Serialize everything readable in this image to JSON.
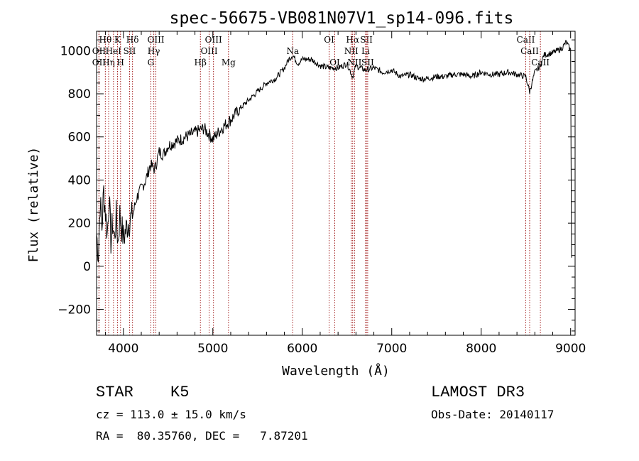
{
  "chart_data": {
    "type": "line",
    "title": "spec-56675-VB081N07V1_sp14-096.fits",
    "xlabel": "Wavelength (Å)",
    "ylabel": "Flux (relative)",
    "xlim": [
      3700,
      9050
    ],
    "ylim": [
      -320,
      1090
    ],
    "xticks": [
      4000,
      5000,
      6000,
      7000,
      8000,
      9000
    ],
    "yticks": [
      -200,
      0,
      200,
      400,
      600,
      800,
      1000
    ],
    "xtick_labels": [
      "4000",
      "5000",
      "6000",
      "7000",
      "8000",
      "9000"
    ],
    "ytick_labels": [
      "−200",
      "0",
      "200",
      "400",
      "600",
      "800",
      "1000"
    ],
    "series": [
      {
        "name": "flux",
        "color": "#000000",
        "x": [
          3700,
          3720,
          3740,
          3760,
          3780,
          3800,
          3820,
          3840,
          3860,
          3880,
          3900,
          3920,
          3940,
          3960,
          3980,
          4000,
          4050,
          4100,
          4150,
          4200,
          4250,
          4300,
          4350,
          4400,
          4450,
          4500,
          4600,
          4700,
          4800,
          4900,
          5000,
          5100,
          5200,
          5300,
          5400,
          5500,
          5600,
          5700,
          5800,
          5850,
          5893,
          5950,
          6000,
          6100,
          6200,
          6300,
          6400,
          6500,
          6563,
          6600,
          6700,
          6800,
          6900,
          7000,
          7100,
          7200,
          7300,
          7400,
          7500,
          7600,
          7700,
          7800,
          7900,
          8000,
          8100,
          8200,
          8300,
          8400,
          8498,
          8542,
          8600,
          8662,
          8700,
          8800,
          8900,
          8950,
          9000,
          9010
        ],
        "y": [
          150,
          60,
          300,
          180,
          350,
          250,
          150,
          320,
          120,
          200,
          130,
          230,
          110,
          240,
          180,
          130,
          200,
          230,
          320,
          360,
          400,
          470,
          450,
          530,
          520,
          560,
          580,
          600,
          620,
          640,
          590,
          640,
          680,
          730,
          770,
          810,
          850,
          870,
          920,
          960,
          980,
          940,
          960,
          960,
          930,
          920,
          920,
          940,
          880,
          930,
          910,
          920,
          900,
          910,
          880,
          890,
          870,
          870,
          880,
          880,
          890,
          890,
          880,
          900,
          890,
          890,
          900,
          890,
          880,
          810,
          900,
          930,
          980,
          990,
          1010,
          1040,
          1000,
          40
        ]
      }
    ],
    "lines": [
      {
        "name": "Hθ",
        "wavelength": 3798,
        "row": 1
      },
      {
        "name": "OII",
        "wavelength": 3727,
        "row": 2
      },
      {
        "name": "OII",
        "wavelength": 3727,
        "row": 3
      },
      {
        "name": "Hη",
        "wavelength": 3835,
        "row": 3
      },
      {
        "name": "HeI",
        "wavelength": 3889,
        "row": 2
      },
      {
        "name": "K",
        "wavelength": 3934,
        "row": 1
      },
      {
        "name": "H",
        "wavelength": 3968,
        "row": 3
      },
      {
        "name": "SII",
        "wavelength": 4069,
        "row": 2
      },
      {
        "name": "Hδ",
        "wavelength": 4102,
        "row": 1
      },
      {
        "name": "OIII",
        "wavelength": 4363,
        "row": 1
      },
      {
        "name": "Hγ",
        "wavelength": 4340,
        "row": 2
      },
      {
        "name": "G",
        "wavelength": 4307,
        "row": 3
      },
      {
        "name": "Hβ",
        "wavelength": 4861,
        "row": 3
      },
      {
        "name": "OIII",
        "wavelength": 4959,
        "row": 2
      },
      {
        "name": "OIII",
        "wavelength": 5007,
        "row": 1
      },
      {
        "name": "Mg",
        "wavelength": 5175,
        "row": 3
      },
      {
        "name": "Na",
        "wavelength": 5893,
        "row": 2
      },
      {
        "name": "OI",
        "wavelength": 6300,
        "row": 1
      },
      {
        "name": "OI",
        "wavelength": 6363,
        "row": 3
      },
      {
        "name": "Hα",
        "wavelength": 6563,
        "row": 1
      },
      {
        "name": "NII",
        "wavelength": 6548,
        "row": 2
      },
      {
        "name": "NII",
        "wavelength": 6584,
        "row": 3
      },
      {
        "name": "SII",
        "wavelength": 6717,
        "row": 1
      },
      {
        "name": "Li",
        "wavelength": 6708,
        "row": 2
      },
      {
        "name": "SII",
        "wavelength": 6731,
        "row": 3
      },
      {
        "name": "CaII",
        "wavelength": 8498,
        "row": 1
      },
      {
        "name": "CaII",
        "wavelength": 8542,
        "row": 2
      },
      {
        "name": "CaII",
        "wavelength": 8662,
        "row": 3
      }
    ],
    "line_color": "#a01818"
  },
  "footer": {
    "class_label": "STAR",
    "subclass": "K5",
    "cz": "cz = 113.0 ± 15.0 km/s",
    "radec": "RA =  80.35760, DEC =   7.87201",
    "survey": "LAMOST DR3",
    "obs_date": "Obs-Date: 20140117"
  }
}
